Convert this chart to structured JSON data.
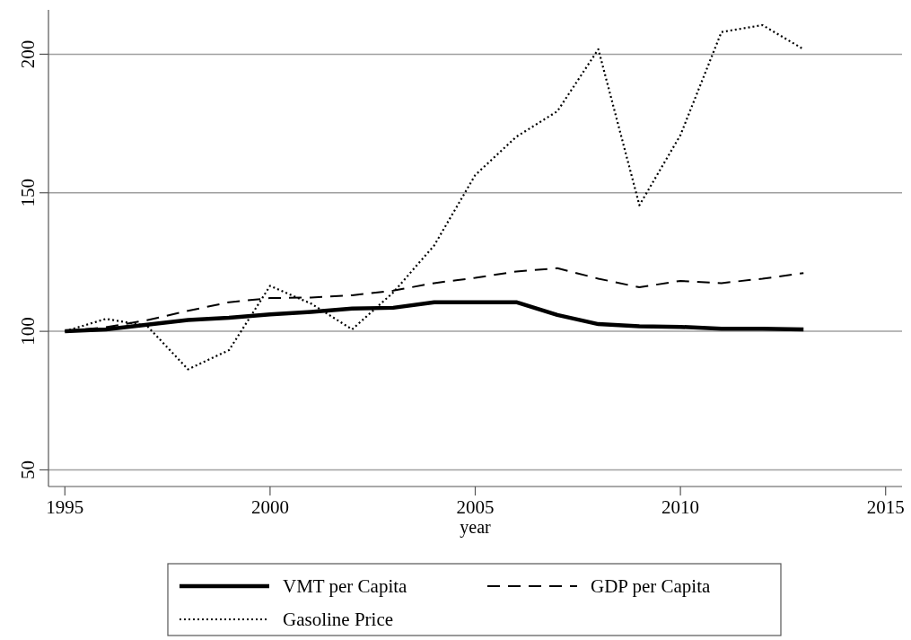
{
  "chart_data": {
    "type": "line",
    "xlabel": "year",
    "x": [
      1995,
      1996,
      1997,
      1998,
      1999,
      2000,
      2001,
      2002,
      2003,
      2004,
      2005,
      2006,
      2007,
      2008,
      2009,
      2010,
      2011,
      2012,
      2013
    ],
    "series": [
      {
        "name": "VMT per Capita",
        "color": "#000000",
        "line_style": "solid",
        "values": [
          100,
          100.7,
          102.4,
          104.1,
          104.9,
          106.1,
          107,
          108.2,
          108.5,
          110.5,
          110.5,
          110.5,
          105.9,
          102.6,
          101.8,
          101.6,
          100.9,
          100.9,
          100.7
        ]
      },
      {
        "name": "GDP per Capita",
        "color": "#000000",
        "line_style": "dashed",
        "values": [
          100,
          101.5,
          104,
          107.4,
          110.5,
          112,
          112.2,
          113,
          114.7,
          117.4,
          119.3,
          121.6,
          122.8,
          119,
          115.9,
          118.2,
          117.4,
          119,
          121
        ]
      },
      {
        "name": "Gasoline Price",
        "color": "#000000",
        "line_style": "dotted",
        "values": [
          100,
          104.5,
          102,
          86.3,
          93.2,
          116.4,
          110,
          100.7,
          114,
          131,
          156.4,
          170.2,
          179.4,
          201.8,
          145.5,
          170.8,
          208,
          210.5,
          201.8
        ]
      }
    ],
    "xlim": [
      1994.6,
      2015.4
    ],
    "xticks": [
      1995,
      2000,
      2005,
      2010,
      2015
    ],
    "ylim": [
      44,
      216
    ],
    "yticks": [
      50,
      100,
      150,
      200
    ],
    "grid": "y",
    "legend": "bottom",
    "marker": "none"
  }
}
